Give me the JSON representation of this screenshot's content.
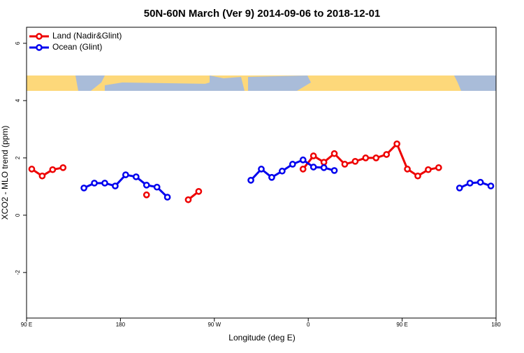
{
  "chart_data": {
    "type": "line",
    "title": "50N-60N March (Ver 9)   2014-09-06 to 2018-12-01",
    "x_label": "Longitude (deg E)",
    "y_label": "XCO2 - MLO trend (ppm)",
    "x": [
      95,
      105,
      115,
      125,
      135,
      145,
      155,
      165,
      175,
      185,
      195,
      205,
      215,
      225,
      235,
      245,
      255,
      265,
      275,
      285,
      295,
      305,
      315,
      325,
      335,
      345,
      355,
      365,
      375,
      385,
      395,
      405,
      415,
      425,
      435,
      445,
      455,
      465,
      475,
      485,
      495,
      505,
      515,
      525,
      535
    ],
    "series": [
      {
        "name": "Land (Nadir&Glint)",
        "color": "#ee0000",
        "values": [
          1.61,
          1.37,
          1.59,
          1.66,
          null,
          null,
          null,
          null,
          null,
          null,
          null,
          0.71,
          null,
          null,
          null,
          0.54,
          0.83,
          null,
          null,
          null,
          null,
          null,
          null,
          null,
          null,
          null,
          1.61,
          2.07,
          1.85,
          2.15,
          1.78,
          1.88,
          2.0,
          2.0,
          2.12,
          2.49,
          1.61,
          1.37,
          1.59,
          1.66,
          null,
          null,
          null,
          null,
          null
        ]
      },
      {
        "name": "Ocean (Glint)",
        "color": "#0000ee",
        "values": [
          null,
          null,
          null,
          null,
          null,
          0.95,
          1.12,
          1.12,
          1.02,
          1.41,
          1.34,
          1.05,
          0.98,
          0.63,
          null,
          null,
          null,
          null,
          null,
          null,
          null,
          1.22,
          1.61,
          1.32,
          1.54,
          1.78,
          1.93,
          1.68,
          1.66,
          1.56,
          null,
          null,
          null,
          null,
          null,
          null,
          null,
          null,
          null,
          null,
          null,
          0.95,
          1.12,
          1.15,
          1.02
        ]
      }
    ],
    "xlim": [
      90,
      540
    ],
    "xticks": [
      {
        "value": 90,
        "label": "90 E"
      },
      180,
      {
        "value": 270,
        "label": "90 W"
      },
      {
        "value": 360,
        "label": "0"
      },
      {
        "value": 450,
        "label": "90 E"
      },
      {
        "value": 540,
        "label": "180"
      }
    ],
    "ylim": [
      -3.59,
      6.56
    ],
    "yticks": [
      -2,
      0,
      2,
      4,
      6
    ],
    "legend": "top-left"
  }
}
